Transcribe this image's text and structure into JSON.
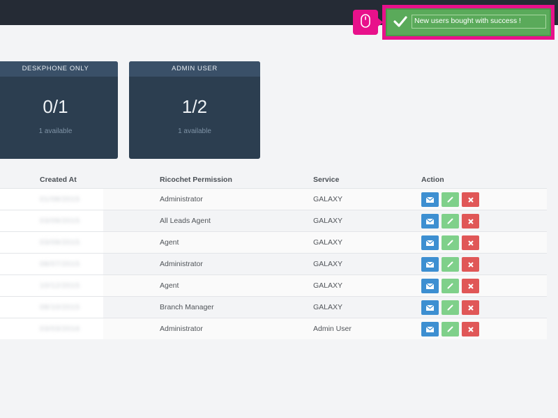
{
  "cards": [
    {
      "title": "DESKPHONE ONLY",
      "value": "0/1",
      "sub": "1 available"
    },
    {
      "title": "ADMIN USER",
      "value": "1/2",
      "sub": "1 available"
    }
  ],
  "table": {
    "headers": {
      "created_at": "Created At",
      "permission": "Ricochet Permission",
      "service": "Service",
      "action": "Action"
    },
    "rows": [
      {
        "created_at": "01/08/2015",
        "permission": "Administrator",
        "service": "GALAXY"
      },
      {
        "created_at": "03/09/2015",
        "permission": "All Leads Agent",
        "service": "GALAXY"
      },
      {
        "created_at": "03/09/2015",
        "permission": "Agent",
        "service": "GALAXY"
      },
      {
        "created_at": "08/07/2015",
        "permission": "Administrator",
        "service": "GALAXY"
      },
      {
        "created_at": "10/12/2015",
        "permission": "Agent",
        "service": "GALAXY"
      },
      {
        "created_at": "08/10/2015",
        "permission": "Branch Manager",
        "service": "GALAXY"
      },
      {
        "created_at": "03/03/2016",
        "permission": "Administrator",
        "service": "Admin User"
      }
    ]
  },
  "toast": {
    "message": "New users bought with success !"
  },
  "icons": {
    "toast": "check-icon",
    "badge": "mouse-icon",
    "row_actions": [
      "envelope-icon",
      "pencil-icon",
      "close-icon"
    ]
  },
  "colors": {
    "topbar": "#252b35",
    "card_bg": "#2c3e50",
    "card_header": "#3a5068",
    "toast_bg": "#5aaa5a",
    "highlight": "#e8118b",
    "btn_mail": "#3d8fd1",
    "btn_edit": "#7fd08a",
    "btn_delete": "#e05757"
  }
}
